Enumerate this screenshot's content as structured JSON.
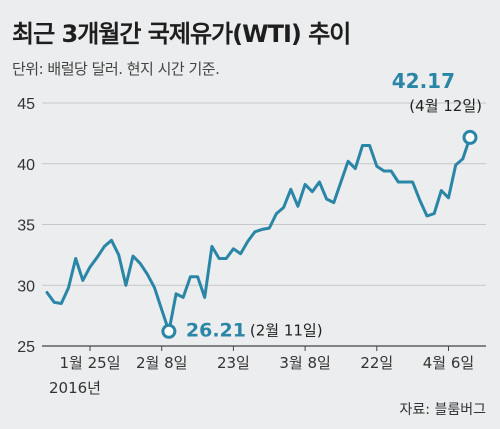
{
  "title": "최근 3개월간 국제유가(WTI) 추이",
  "subtitle": "단위: 배럴당 달러. 현지 시간 기준.",
  "source": "자료: 블룸버그",
  "colors": {
    "line": "#2a86a6",
    "accent": "#2a86a6",
    "grid": "#c7c7c7",
    "axis": "#444444"
  },
  "chart_data": {
    "type": "line",
    "title": "최근 3개월간 국제유가(WTI) 추이",
    "ylim": [
      25,
      45
    ],
    "yticks": [
      25,
      30,
      35,
      40,
      45
    ],
    "xticks": [
      {
        "i": 6,
        "label": "1월 25일"
      },
      {
        "i": 16,
        "label": "2월 8일"
      },
      {
        "i": 26,
        "label": "23일"
      },
      {
        "i": 36,
        "label": "3월 8일"
      },
      {
        "i": 46,
        "label": "22일"
      },
      {
        "i": 56,
        "label": "4월 6일"
      }
    ],
    "year_label": "2016년",
    "grid": true,
    "values": [
      29.4,
      28.6,
      28.5,
      29.8,
      32.2,
      30.4,
      31.5,
      32.3,
      33.2,
      33.7,
      32.5,
      30.0,
      32.4,
      31.8,
      30.9,
      29.8,
      28.0,
      26.21,
      29.3,
      29.0,
      30.7,
      30.7,
      29.0,
      33.2,
      32.2,
      32.2,
      33.0,
      32.6,
      33.6,
      34.4,
      34.6,
      34.7,
      35.9,
      36.4,
      37.9,
      36.5,
      38.3,
      37.7,
      38.5,
      37.1,
      36.8,
      38.5,
      40.2,
      39.6,
      41.5,
      41.5,
      39.8,
      39.4,
      39.4,
      38.5,
      38.5,
      38.5,
      37.0,
      35.7,
      35.9,
      37.8,
      37.2,
      39.9,
      40.4,
      42.17
    ],
    "annotations": [
      {
        "i": 17,
        "value": "26.21",
        "date": "(2월 11일)"
      },
      {
        "i": 59,
        "value": "42.17",
        "date": "(4월 12일)"
      }
    ]
  }
}
